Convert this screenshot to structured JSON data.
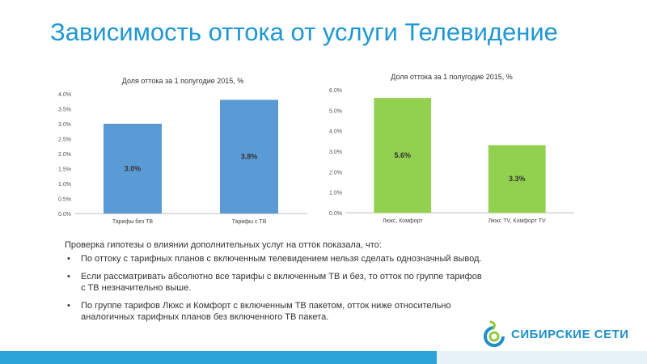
{
  "slide": {
    "title": "Зависимость оттока от услуги Телевидение",
    "intro": "Проверка гипотезы о влиянии дополнительных услуг на отток показала, что:",
    "bullets": [
      "По оттоку с тарифных планов с включенным телевидением нельзя сделать однозначный вывод.",
      "Если рассматривать абсолютно все тарифы с включенным ТВ и без, то отток по группе тарифов с ТВ незначительно выше.",
      "По группе тарифов Люкс и Комфорт с  включенным ТВ пакетом, отток ниже относительно аналогичных тарифных планов без включенного ТВ пакета."
    ],
    "logo_text": "СИБИРСКИЕ СЕТИ",
    "colors": {
      "title": "#1f97d4",
      "bar_blue": "#5b9bd5",
      "bar_green": "#92d050",
      "footer": "#2ba3d9"
    }
  },
  "chart_data": [
    {
      "type": "bar",
      "title": "Доля оттока за 1 полугодие 2015, %",
      "categories": [
        "Тарифы без ТВ",
        "Тарифы с ТВ"
      ],
      "values": [
        3.0,
        3.8
      ],
      "data_labels": [
        "3.0%",
        "3.8%"
      ],
      "ylim": [
        0,
        4.0
      ],
      "yticks": [
        "0.0%",
        "0.5%",
        "1.0%",
        "1.5%",
        "2.0%",
        "2.5%",
        "3.0%",
        "3.5%",
        "4.0%"
      ],
      "color": "#5b9bd5"
    },
    {
      "type": "bar",
      "title": "Доля оттока за 1 полугодие 2015, %",
      "categories": [
        "Люкс, Комфорт",
        "Люкс TV, Комфорт TV"
      ],
      "values": [
        5.6,
        3.3
      ],
      "data_labels": [
        "5.6%",
        "3.3%"
      ],
      "ylim": [
        0,
        6.0
      ],
      "yticks": [
        "0.0%",
        "1.0%",
        "2.0%",
        "3.0%",
        "4.0%",
        "5.0%",
        "6.0%"
      ],
      "color": "#92d050"
    }
  ]
}
